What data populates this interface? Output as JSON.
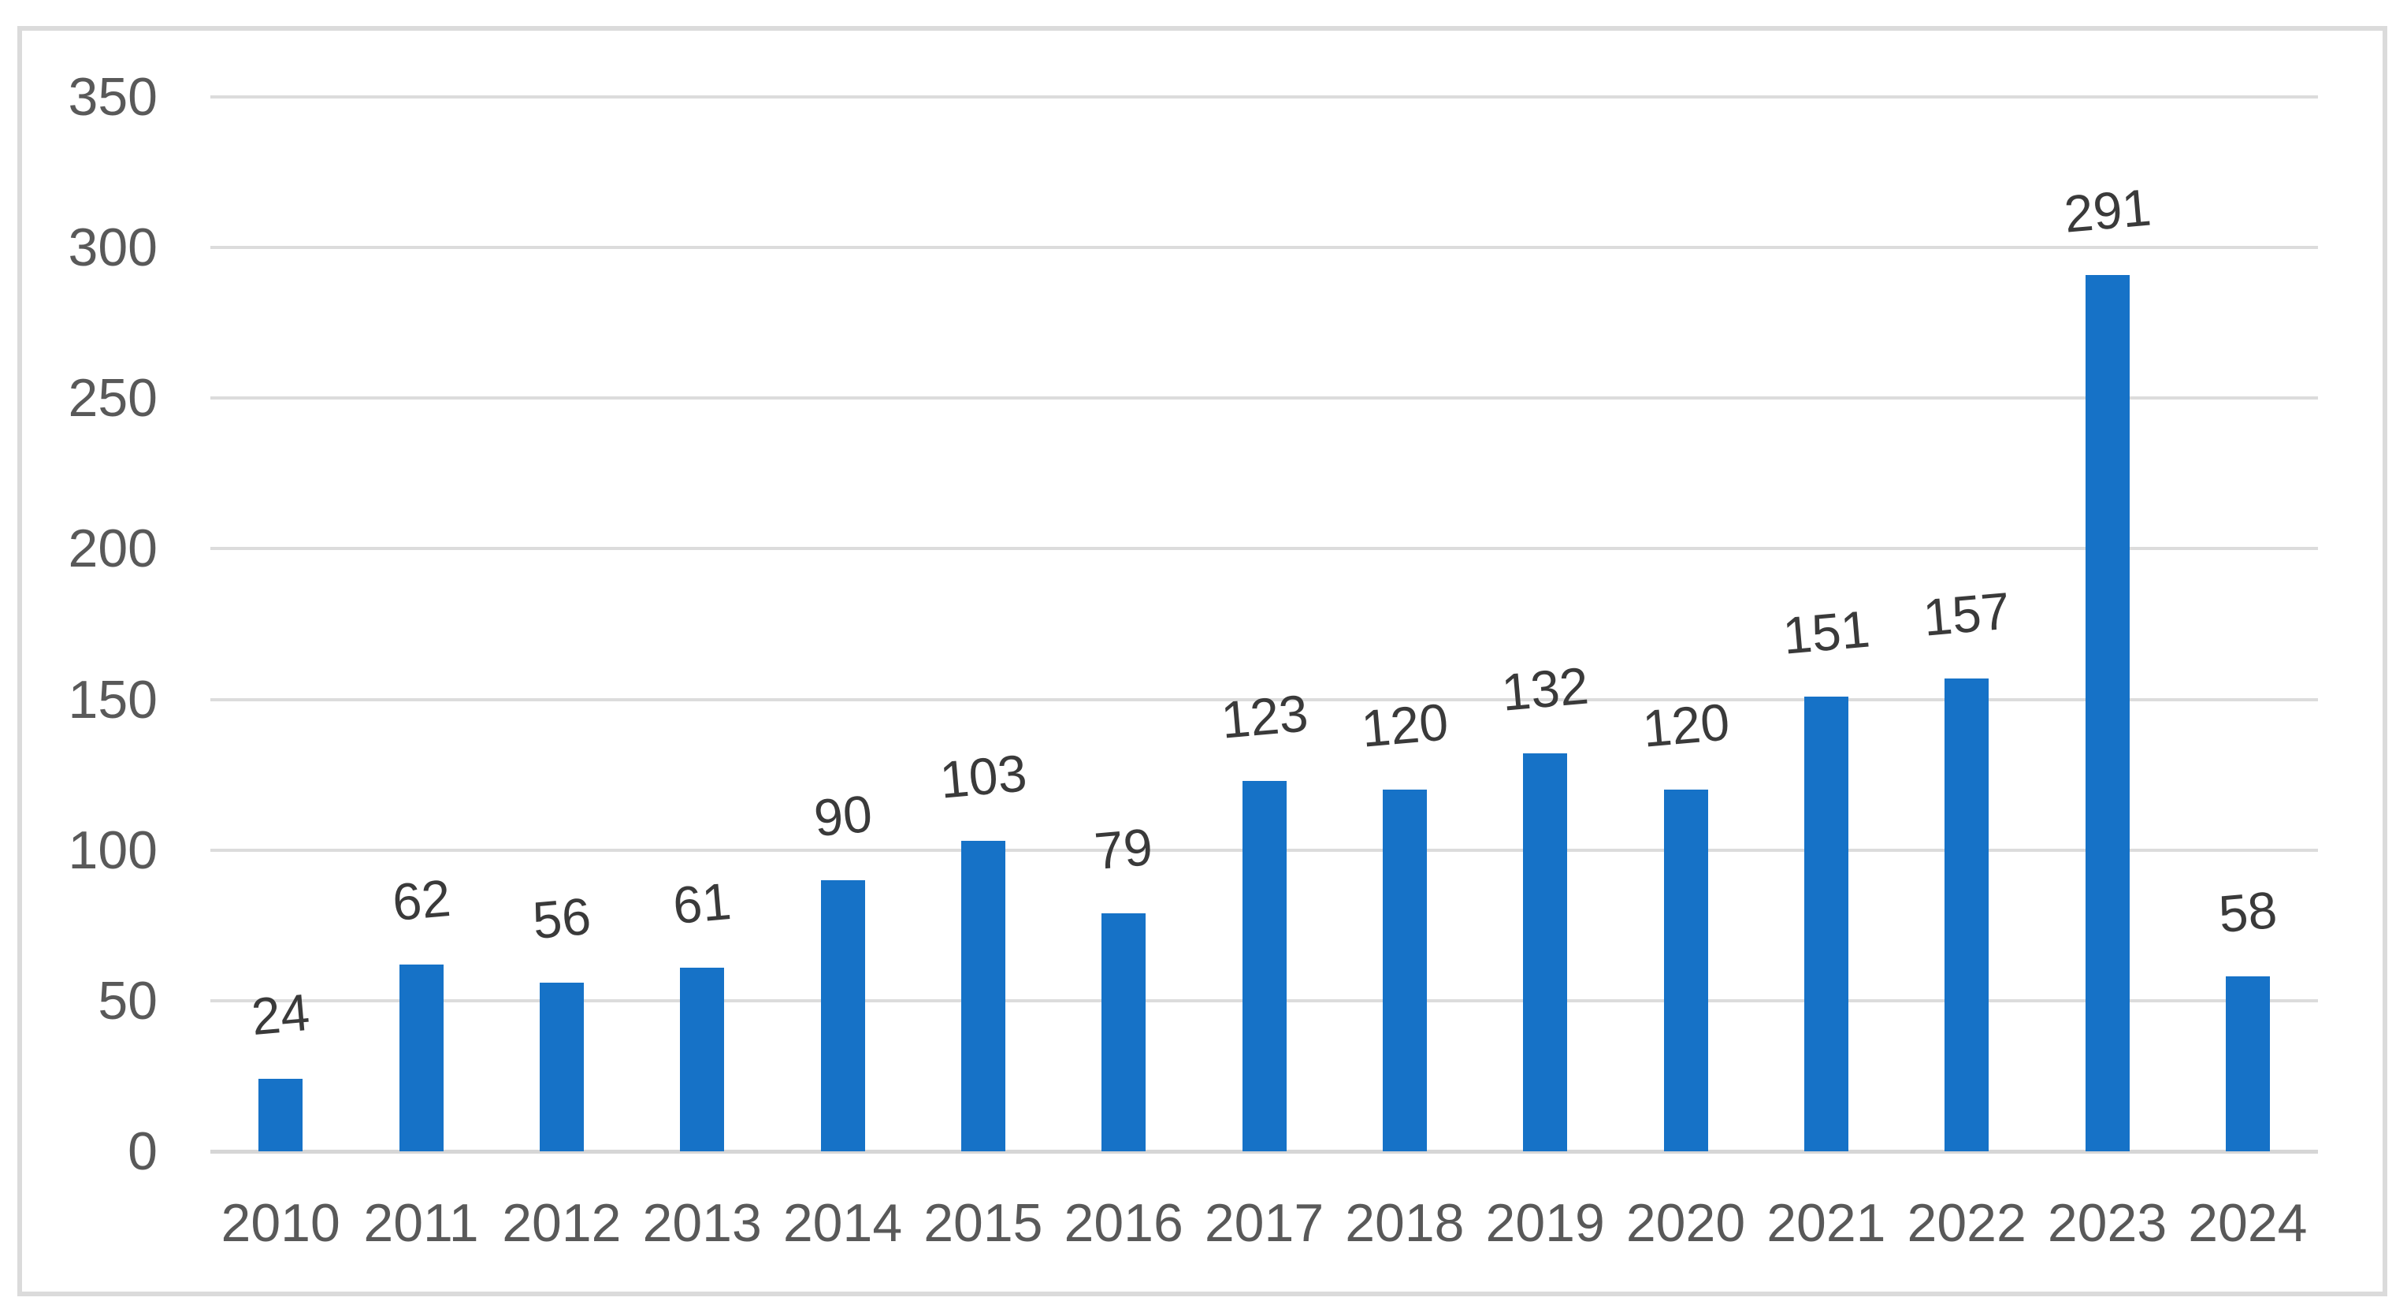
{
  "chart_data": {
    "type": "bar",
    "title": "",
    "xlabel": "",
    "ylabel": "",
    "categories": [
      "2010",
      "2011",
      "2012",
      "2013",
      "2014",
      "2015",
      "2016",
      "2017",
      "2018",
      "2019",
      "2020",
      "2021",
      "2022",
      "2023",
      "2024"
    ],
    "values": [
      24,
      62,
      56,
      61,
      90,
      103,
      79,
      123,
      120,
      132,
      120,
      151,
      157,
      291,
      58
    ],
    "data_labels": [
      "24",
      "62",
      "56",
      "61",
      "90",
      "103",
      "79",
      "123",
      "120",
      "132",
      "120",
      "151",
      "157",
      "291",
      "58"
    ],
    "series": [
      {
        "name": "",
        "values": [
          24,
          62,
          56,
          61,
          90,
          103,
          79,
          123,
          120,
          132,
          120,
          151,
          157,
          291,
          58
        ]
      }
    ],
    "yticks": [
      "350",
      "300",
      "250",
      "200",
      "150",
      "100",
      "50",
      "0"
    ],
    "ylim": [
      0,
      350
    ],
    "ytick_step": 50,
    "grid": true,
    "legend_position": "none",
    "colors": {
      "bar": "#1672C7",
      "gridline": "#DCDCDC",
      "axis_line": "#D6D6D6",
      "frame_border": "#DBDBDB",
      "tick_text": "#595959",
      "data_label_text": "#3A3A3A",
      "background": "#FFFFFF"
    }
  }
}
